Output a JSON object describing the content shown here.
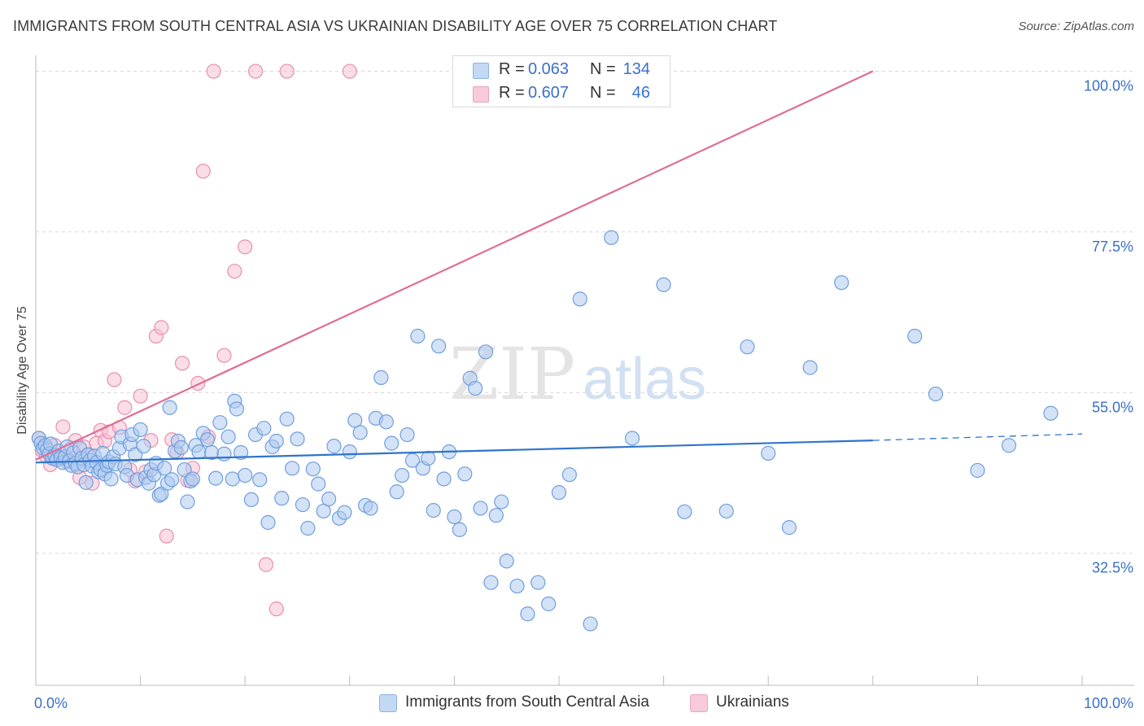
{
  "title": "IMMIGRANTS FROM SOUTH CENTRAL ASIA VS UKRAINIAN DISABILITY AGE OVER 75 CORRELATION CHART",
  "source": "Source: ZipAtlas.com",
  "watermark": {
    "zip": "ZIP",
    "atlas": "atlas"
  },
  "legend_top": {
    "rows": [
      {
        "r_label": "R =",
        "r_value": "0.063",
        "n_label": "N =",
        "n_value": "134"
      },
      {
        "r_label": "R =",
        "r_value": "0.607",
        "n_label": "N =",
        "n_value": "46"
      }
    ]
  },
  "legend_bottom": {
    "items": [
      {
        "label": "Immigrants from South Central Asia"
      },
      {
        "label": "Ukrainians"
      }
    ]
  },
  "colors": {
    "blue_fill": "#aecbf0",
    "blue_stroke": "#6f9fdc",
    "blue_line": "#2f74cc",
    "pink_fill": "#f6c1d3",
    "pink_stroke": "#e98fae",
    "pink_line": "#e06c97",
    "axis_text": "#3a70c8",
    "grid": "#d8d8d8"
  },
  "chart_data": {
    "type": "scatter",
    "title": "IMMIGRANTS FROM SOUTH CENTRAL ASIA VS UKRAINIAN DISABILITY AGE OVER 75 CORRELATION CHART",
    "xlabel": "",
    "ylabel": "Disability Age Over 75",
    "xlim": [
      0,
      100
    ],
    "ylim": [
      14,
      102
    ],
    "x_tick_labels": [
      "0.0%",
      "100.0%"
    ],
    "y_ticks": [
      32.5,
      55.0,
      77.5,
      100.0
    ],
    "y_tick_labels": [
      "32.5%",
      "55.0%",
      "77.5%",
      "100.0%"
    ],
    "grid": true,
    "series": [
      {
        "name": "Immigrants from South Central Asia",
        "r": 0.063,
        "n": 134,
        "trend": {
          "x": [
            0,
            80
          ],
          "y": [
            45.2,
            48.3
          ],
          "dashed_extension": {
            "x": [
              80,
              100
            ],
            "y": [
              48.3,
              49.2
            ]
          }
        },
        "points": [
          [
            0.3,
            48.6
          ],
          [
            0.5,
            47.9
          ],
          [
            0.7,
            47.2
          ],
          [
            0.9,
            47.6
          ],
          [
            1.1,
            47.0
          ],
          [
            1.3,
            46.4
          ],
          [
            1.4,
            47.8
          ],
          [
            1.6,
            45.8
          ],
          [
            1.8,
            46.2
          ],
          [
            2.0,
            45.6
          ],
          [
            2.2,
            46.8
          ],
          [
            2.4,
            45.9
          ],
          [
            2.6,
            45.2
          ],
          [
            2.8,
            46.0
          ],
          [
            3.0,
            47.4
          ],
          [
            3.2,
            45.4
          ],
          [
            3.4,
            44.8
          ],
          [
            3.6,
            46.6
          ],
          [
            3.8,
            45.1
          ],
          [
            4.0,
            44.6
          ],
          [
            4.2,
            47.2
          ],
          [
            4.4,
            45.8
          ],
          [
            4.6,
            44.9
          ],
          [
            4.8,
            42.4
          ],
          [
            5.0,
            46.3
          ],
          [
            5.2,
            45.5
          ],
          [
            5.4,
            44.7
          ],
          [
            5.6,
            46.1
          ],
          [
            5.8,
            45.2
          ],
          [
            6.0,
            43.9
          ],
          [
            6.2,
            44.2
          ],
          [
            6.4,
            46.5
          ],
          [
            6.6,
            43.6
          ],
          [
            6.8,
            44.8
          ],
          [
            7.0,
            45.3
          ],
          [
            7.2,
            42.9
          ],
          [
            7.4,
            46.0
          ],
          [
            7.6,
            45.0
          ],
          [
            8.0,
            47.2
          ],
          [
            8.2,
            48.8
          ],
          [
            8.5,
            44.6
          ],
          [
            8.7,
            43.4
          ],
          [
            9.0,
            47.8
          ],
          [
            9.2,
            49.1
          ],
          [
            9.5,
            46.3
          ],
          [
            9.7,
            42.8
          ],
          [
            10.0,
            49.8
          ],
          [
            10.3,
            47.5
          ],
          [
            10.5,
            43.1
          ],
          [
            10.8,
            42.3
          ],
          [
            11.0,
            44.2
          ],
          [
            11.3,
            43.5
          ],
          [
            11.5,
            45.1
          ],
          [
            11.8,
            40.6
          ],
          [
            12.0,
            40.8
          ],
          [
            12.3,
            44.4
          ],
          [
            12.6,
            42.3
          ],
          [
            12.8,
            52.9
          ],
          [
            13.0,
            42.8
          ],
          [
            13.3,
            46.8
          ],
          [
            13.6,
            48.2
          ],
          [
            13.9,
            47.3
          ],
          [
            14.2,
            44.2
          ],
          [
            14.5,
            39.7
          ],
          [
            14.8,
            42.6
          ],
          [
            15.0,
            42.9
          ],
          [
            15.3,
            47.6
          ],
          [
            15.6,
            46.7
          ],
          [
            16.0,
            49.3
          ],
          [
            16.4,
            48.4
          ],
          [
            16.8,
            46.6
          ],
          [
            17.2,
            43.0
          ],
          [
            17.6,
            50.8
          ],
          [
            18.0,
            46.4
          ],
          [
            18.4,
            48.8
          ],
          [
            18.8,
            42.9
          ],
          [
            19.0,
            53.8
          ],
          [
            19.2,
            52.7
          ],
          [
            19.6,
            46.6
          ],
          [
            20.0,
            43.4
          ],
          [
            20.6,
            40.0
          ],
          [
            21.0,
            49.1
          ],
          [
            21.4,
            42.8
          ],
          [
            21.8,
            50.0
          ],
          [
            22.2,
            36.8
          ],
          [
            22.6,
            47.4
          ],
          [
            23.0,
            48.2
          ],
          [
            23.5,
            40.2
          ],
          [
            24.0,
            51.3
          ],
          [
            24.5,
            44.4
          ],
          [
            25.0,
            48.5
          ],
          [
            25.5,
            39.3
          ],
          [
            26.0,
            36.0
          ],
          [
            26.5,
            44.3
          ],
          [
            27.0,
            42.2
          ],
          [
            27.5,
            38.4
          ],
          [
            28.0,
            40.1
          ],
          [
            28.5,
            47.5
          ],
          [
            29.0,
            37.4
          ],
          [
            29.5,
            38.2
          ],
          [
            30.0,
            46.7
          ],
          [
            30.5,
            51.1
          ],
          [
            31.0,
            49.4
          ],
          [
            31.5,
            39.2
          ],
          [
            32.0,
            38.8
          ],
          [
            32.5,
            51.4
          ],
          [
            33.0,
            57.1
          ],
          [
            33.5,
            50.9
          ],
          [
            34.0,
            47.9
          ],
          [
            34.5,
            41.1
          ],
          [
            35.0,
            43.4
          ],
          [
            35.5,
            49.1
          ],
          [
            36.0,
            45.5
          ],
          [
            36.5,
            62.9
          ],
          [
            37.0,
            44.4
          ],
          [
            37.5,
            45.8
          ],
          [
            38.0,
            38.5
          ],
          [
            38.5,
            61.5
          ],
          [
            39.0,
            42.9
          ],
          [
            39.5,
            46.7
          ],
          [
            40.0,
            37.6
          ],
          [
            40.5,
            35.8
          ],
          [
            41.0,
            43.6
          ],
          [
            41.5,
            57.0
          ],
          [
            42.0,
            55.6
          ],
          [
            42.5,
            38.8
          ],
          [
            43.0,
            60.7
          ],
          [
            43.5,
            28.4
          ],
          [
            44.0,
            37.8
          ],
          [
            44.5,
            39.7
          ],
          [
            45.0,
            31.4
          ],
          [
            46.0,
            27.9
          ],
          [
            47.0,
            24.0
          ],
          [
            48.0,
            28.4
          ],
          [
            49.0,
            25.4
          ],
          [
            50.0,
            41.0
          ],
          [
            51.0,
            43.5
          ],
          [
            52.0,
            68.1
          ],
          [
            53.0,
            22.6
          ],
          [
            55.0,
            76.7
          ],
          [
            57.0,
            48.6
          ],
          [
            60.0,
            70.1
          ],
          [
            62.0,
            38.3
          ],
          [
            66.0,
            38.4
          ],
          [
            68.0,
            61.4
          ],
          [
            70.0,
            46.5
          ],
          [
            72.0,
            36.1
          ],
          [
            74.0,
            58.5
          ],
          [
            77.0,
            70.4
          ],
          [
            84.0,
            62.9
          ],
          [
            86.0,
            54.8
          ],
          [
            90.0,
            44.1
          ],
          [
            93.0,
            47.6
          ],
          [
            97.0,
            52.1
          ]
        ]
      },
      {
        "name": "Ukrainians",
        "r": 0.607,
        "n": 46,
        "trend": {
          "x": [
            0,
            80
          ],
          "y": [
            45.6,
            100.0
          ]
        },
        "points": [
          [
            0.3,
            48.6
          ],
          [
            0.6,
            46.9
          ],
          [
            1.0,
            46.1
          ],
          [
            1.4,
            44.9
          ],
          [
            1.8,
            47.6
          ],
          [
            2.2,
            45.7
          ],
          [
            2.6,
            50.2
          ],
          [
            3.0,
            45.3
          ],
          [
            3.4,
            47.2
          ],
          [
            3.8,
            48.3
          ],
          [
            4.2,
            43.1
          ],
          [
            4.6,
            47.4
          ],
          [
            5.0,
            46.2
          ],
          [
            5.4,
            42.3
          ],
          [
            5.8,
            47.9
          ],
          [
            6.2,
            49.7
          ],
          [
            6.6,
            48.2
          ],
          [
            7.0,
            49.5
          ],
          [
            7.5,
            56.8
          ],
          [
            8.0,
            50.1
          ],
          [
            8.5,
            52.9
          ],
          [
            9.0,
            44.2
          ],
          [
            9.5,
            42.6
          ],
          [
            10.0,
            54.5
          ],
          [
            10.5,
            43.9
          ],
          [
            11.0,
            48.3
          ],
          [
            11.5,
            62.9
          ],
          [
            12.0,
            64.1
          ],
          [
            12.5,
            34.9
          ],
          [
            13.0,
            48.4
          ],
          [
            13.5,
            46.6
          ],
          [
            14.0,
            59.1
          ],
          [
            14.5,
            42.7
          ],
          [
            15.0,
            44.4
          ],
          [
            15.5,
            56.3
          ],
          [
            16.0,
            86.0
          ],
          [
            16.5,
            48.8
          ],
          [
            17.0,
            100.0
          ],
          [
            18.0,
            60.2
          ],
          [
            19.0,
            72.0
          ],
          [
            20.0,
            75.4
          ],
          [
            21.0,
            100.0
          ],
          [
            22.0,
            30.9
          ],
          [
            23.0,
            24.7
          ],
          [
            24.0,
            100.0
          ],
          [
            30.0,
            100.0
          ]
        ]
      }
    ]
  }
}
